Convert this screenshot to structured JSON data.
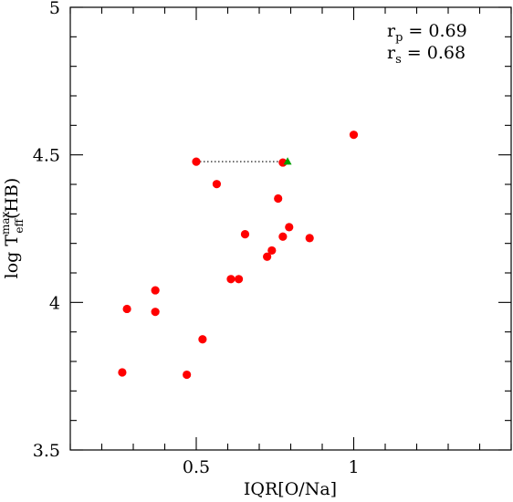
{
  "chart_data": {
    "type": "scatter",
    "xlabel": "IQR[O/Na]",
    "ylabel": {
      "prefix": "log T",
      "superscript": "max",
      "subscript": "eff",
      "suffix": "(HB)"
    },
    "xlim": [
      0.1,
      1.5
    ],
    "ylim": [
      3.5,
      5.0
    ],
    "x_ticks": [
      {
        "value": 0.5,
        "label": "0.5"
      },
      {
        "value": 1.0,
        "label": "1"
      }
    ],
    "y_ticks": [
      {
        "value": 3.5,
        "label": "3.5"
      },
      {
        "value": 4.0,
        "label": "4"
      },
      {
        "value": 4.5,
        "label": "4.5"
      },
      {
        "value": 5.0,
        "label": "5"
      }
    ],
    "grid": false,
    "colors": {
      "points": "#ff0000",
      "marker_alt": "#00a000",
      "connector": "#000000"
    },
    "series": [
      {
        "marker": "circle",
        "color": "#ff0000",
        "points": [
          {
            "x": 0.265,
            "y": 3.763
          },
          {
            "x": 0.28,
            "y": 3.978
          },
          {
            "x": 0.37,
            "y": 4.041
          },
          {
            "x": 0.37,
            "y": 3.968
          },
          {
            "x": 0.47,
            "y": 3.755
          },
          {
            "x": 0.52,
            "y": 3.875
          },
          {
            "x": 0.5,
            "y": 4.477
          },
          {
            "x": 0.565,
            "y": 4.401
          },
          {
            "x": 0.61,
            "y": 4.079
          },
          {
            "x": 0.635,
            "y": 4.079
          },
          {
            "x": 0.655,
            "y": 4.231
          },
          {
            "x": 0.725,
            "y": 4.155
          },
          {
            "x": 0.74,
            "y": 4.176
          },
          {
            "x": 0.76,
            "y": 4.352
          },
          {
            "x": 0.775,
            "y": 4.474
          },
          {
            "x": 0.775,
            "y": 4.223
          },
          {
            "x": 0.795,
            "y": 4.255
          },
          {
            "x": 0.86,
            "y": 4.218
          },
          {
            "x": 1.0,
            "y": 4.568
          }
        ]
      },
      {
        "marker": "triangle",
        "color": "#00a000",
        "points": [
          {
            "x": 0.79,
            "y": 4.478
          }
        ]
      }
    ],
    "connectors": [
      {
        "style": "dotted",
        "from": {
          "x": 0.5,
          "y": 4.477
        },
        "to": {
          "x": 0.775,
          "y": 4.477
        }
      }
    ],
    "annotations": [
      {
        "label": "r",
        "sub": "p",
        "value": "= 0.69"
      },
      {
        "label": "r",
        "sub": "s",
        "value": "= 0.68"
      }
    ]
  }
}
